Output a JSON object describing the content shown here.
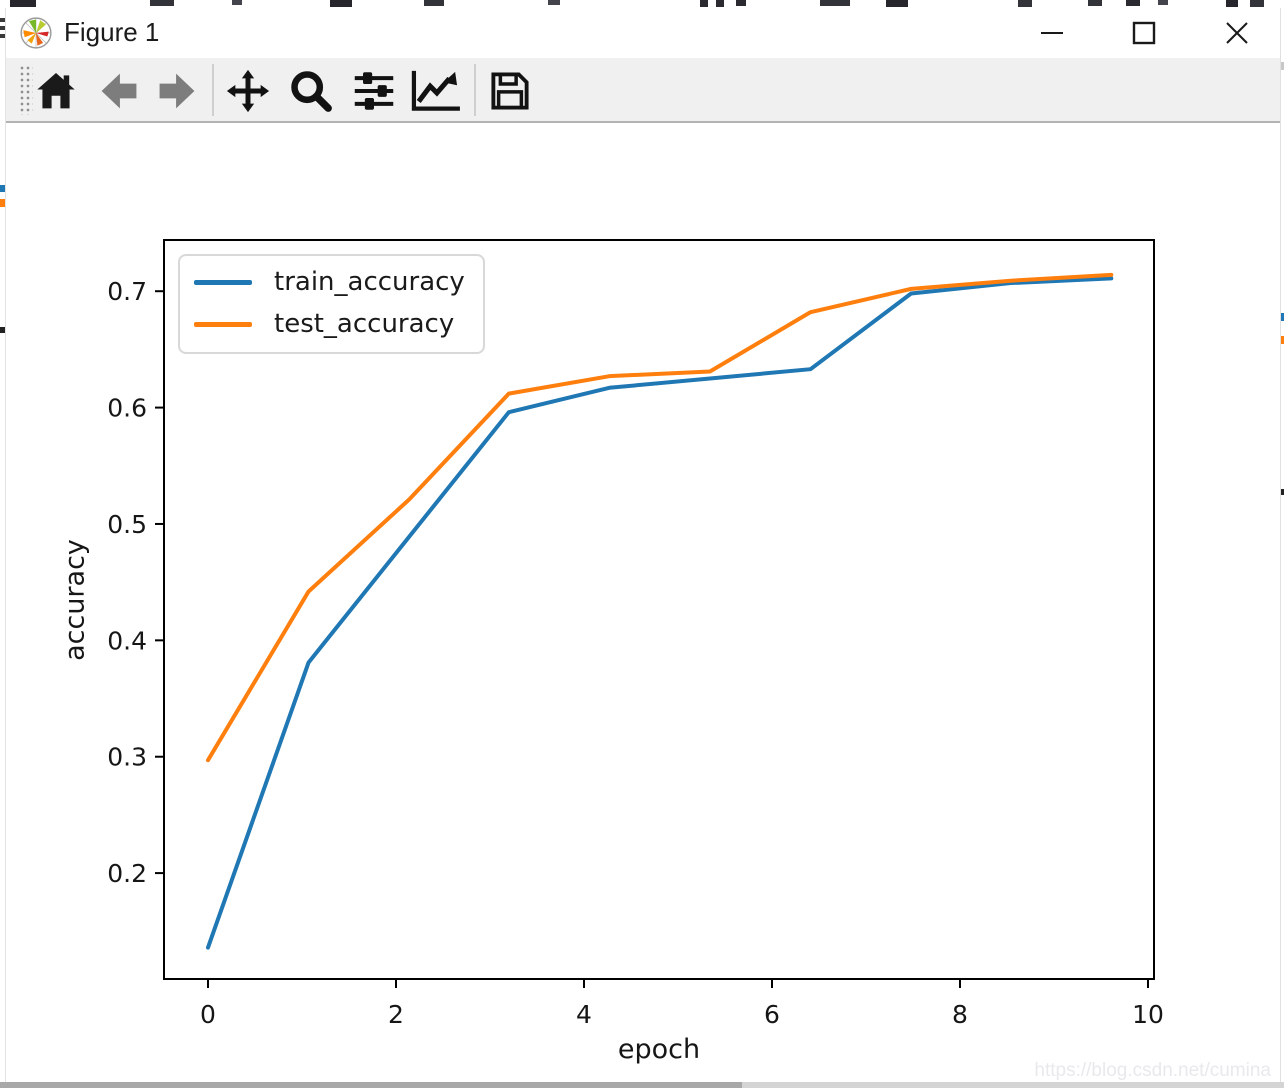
{
  "window": {
    "title": "Figure 1",
    "controls": {
      "minimize": "minimize",
      "maximize": "maximize",
      "close": "close"
    }
  },
  "toolbar": {
    "tools": [
      {
        "name": "home",
        "disabled": false
      },
      {
        "name": "back",
        "disabled": true
      },
      {
        "name": "forward",
        "disabled": true
      },
      {
        "name": "pan",
        "disabled": false
      },
      {
        "name": "zoom",
        "disabled": false
      },
      {
        "name": "configure-subplots",
        "disabled": false
      },
      {
        "name": "edit-parameters",
        "disabled": false
      },
      {
        "name": "save",
        "disabled": false
      }
    ]
  },
  "chart_data": {
    "type": "line",
    "title": "",
    "xlabel": "epoch",
    "ylabel": "accuracy",
    "x_ticks": [
      0,
      2,
      4,
      6,
      8,
      10
    ],
    "y_ticks": [
      0.2,
      0.3,
      0.4,
      0.5,
      0.6,
      0.7
    ],
    "xlim": [
      -0.468,
      10.064
    ],
    "ylim": [
      0.109,
      0.744
    ],
    "grid": false,
    "x": [
      0,
      1.07,
      2.14,
      3.2,
      4.27,
      5.34,
      6.41,
      7.48,
      8.54,
      9.61
    ],
    "series": [
      {
        "name": "train_accuracy",
        "color": "#1f77b4",
        "values": [
          0.136,
          0.381,
          0.489,
          0.596,
          0.617,
          0.625,
          0.633,
          0.698,
          0.707,
          0.711
        ]
      },
      {
        "name": "test_accuracy",
        "color": "#ff7f0e",
        "values": [
          0.297,
          0.442,
          0.521,
          0.612,
          0.627,
          0.631,
          0.682,
          0.702,
          0.709,
          0.714
        ]
      }
    ],
    "legend": {
      "position": "upper left",
      "entries": [
        "train_accuracy",
        "test_accuracy"
      ]
    }
  },
  "watermark": {
    "text": "https://blog.csdn.net/cumina"
  },
  "ui_colors": {
    "titlebar_bg": "#ffffff",
    "toolbar_bg": "#f0f0f0",
    "toolbar_border": "#b3b3b3",
    "icon": "#1a1a1a",
    "icon_disabled": "#7d7d7d",
    "watermark": "#e9e9ed"
  }
}
